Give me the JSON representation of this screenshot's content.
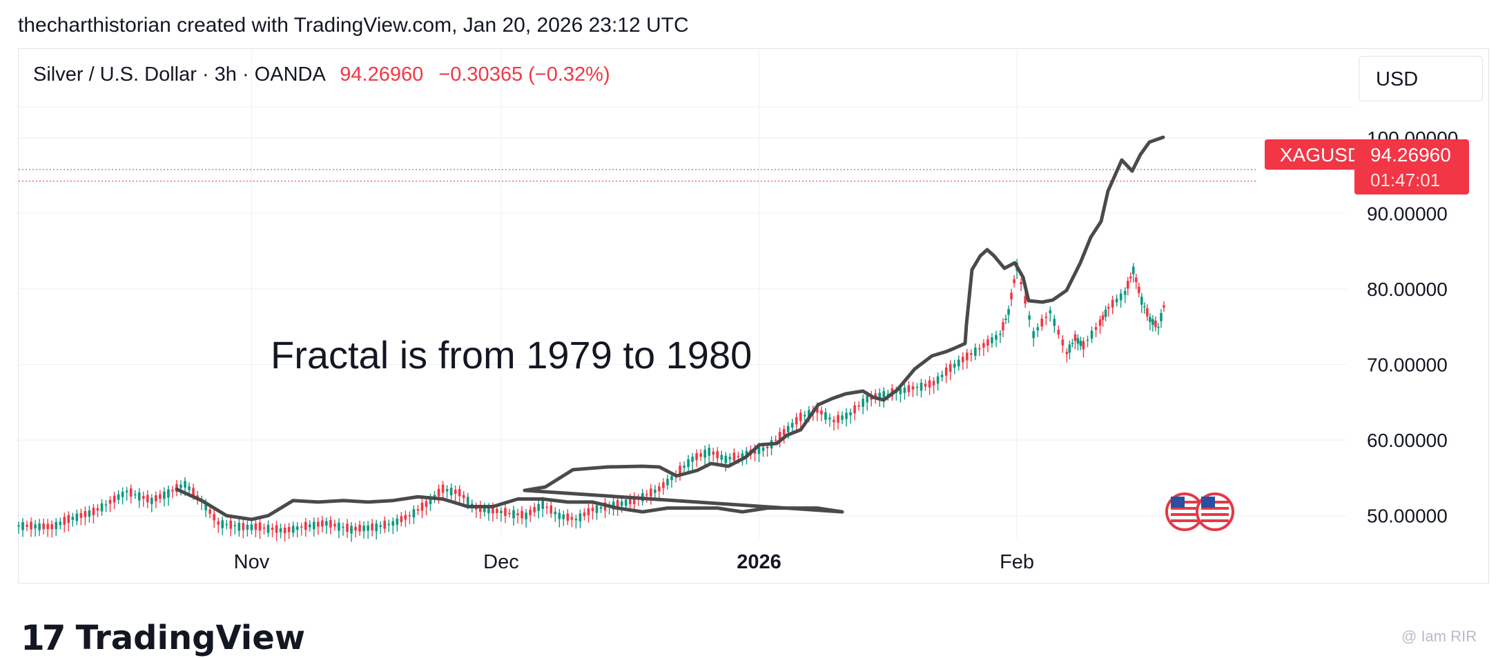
{
  "header": {
    "credit": "thecharthistorian created with TradingView.com, Jan 20, 2026 23:12 UTC"
  },
  "legend": {
    "symbol": "Silver / U.S. Dollar · 3h · OANDA",
    "price": "94.26960",
    "change": "−0.30365 (−0.32%)"
  },
  "currency_button": {
    "label": "USD"
  },
  "price_tag": {
    "ticker": "XAGUSD",
    "price": "94.26960",
    "countdown": "01:47:01"
  },
  "annotation": "Fractal is from 1979 to 1980",
  "branding": {
    "logo_text": "TradingView"
  },
  "watermark": "@ Iam RIR",
  "colors": {
    "up": "#089981",
    "down": "#f23645",
    "fractal_line": "#4a4a4a",
    "grid": "#f0f3fa",
    "price_tag": "#f23645"
  },
  "chart_data": {
    "type": "line",
    "title": "Silver / U.S. Dollar · 3h · OANDA",
    "ylim": [
      47.5,
      105
    ],
    "y_ticks": [
      50,
      60,
      70,
      80,
      90,
      100
    ],
    "y_tick_labels": [
      "50.00000",
      "60.00000",
      "70.00000",
      "80.00000",
      "90.00000",
      "100.00000"
    ],
    "x_ticks": [
      "Nov",
      "Dec",
      "2026",
      "Feb"
    ],
    "x_tick_dates": [
      "2025-11-01",
      "2025-12-01",
      "2026-01-01",
      "2026-02-01"
    ],
    "xlim": [
      "2025-10-04",
      "2026-02-19"
    ],
    "grid": true,
    "last_price": 94.2696,
    "high_line": 95.8,
    "series": [
      {
        "kind": "candles",
        "points": [
          [
            "2025-10-04",
            48.7
          ],
          [
            "2025-10-08",
            48.5
          ],
          [
            "2025-10-10",
            49.5
          ],
          [
            "2025-10-13",
            50.5
          ],
          [
            "2025-10-15",
            51.8
          ],
          [
            "2025-10-17",
            53.2
          ],
          [
            "2025-10-20",
            52.0
          ],
          [
            "2025-10-22",
            53.0
          ],
          [
            "2025-10-24",
            54.2
          ],
          [
            "2025-10-26",
            52.0
          ],
          [
            "2025-10-28",
            49.0
          ],
          [
            "2025-10-31",
            48.5
          ],
          [
            "2025-11-02",
            48.5
          ],
          [
            "2025-11-05",
            48.0
          ],
          [
            "2025-11-07",
            48.5
          ],
          [
            "2025-11-10",
            49.0
          ],
          [
            "2025-11-13",
            48.2
          ],
          [
            "2025-11-16",
            48.5
          ],
          [
            "2025-11-18",
            49.0
          ],
          [
            "2025-11-20",
            50.0
          ],
          [
            "2025-11-22",
            51.5
          ],
          [
            "2025-11-24",
            53.5
          ],
          [
            "2025-11-26",
            53.0
          ],
          [
            "2025-11-28",
            51.0
          ],
          [
            "2025-12-01",
            50.5
          ],
          [
            "2025-12-04",
            50.0
          ],
          [
            "2025-12-06",
            51.5
          ],
          [
            "2025-12-08",
            50.0
          ],
          [
            "2025-12-10",
            49.5
          ],
          [
            "2025-12-12",
            50.8
          ],
          [
            "2025-12-15",
            51.5
          ],
          [
            "2025-12-17",
            52.0
          ],
          [
            "2025-12-20",
            53.5
          ],
          [
            "2025-12-22",
            55.5
          ],
          [
            "2025-12-24",
            57.5
          ],
          [
            "2025-12-26",
            58.5
          ],
          [
            "2025-12-28",
            57.5
          ],
          [
            "2025-12-30",
            58.0
          ],
          [
            "2026-01-02",
            59.0
          ],
          [
            "2026-01-04",
            61.0
          ],
          [
            "2026-01-06",
            63.0
          ],
          [
            "2026-01-08",
            64.0
          ],
          [
            "2026-01-10",
            62.5
          ],
          [
            "2026-01-12",
            63.5
          ],
          [
            "2026-01-14",
            65.5
          ],
          [
            "2026-01-16",
            66.0
          ],
          [
            "2026-01-18",
            66.5
          ],
          [
            "2026-01-20",
            67.0
          ],
          [
            "2026-01-22",
            67.5
          ],
          [
            "2026-01-24",
            69.5
          ],
          [
            "2026-01-26",
            71.0
          ],
          [
            "2026-01-28",
            72.5
          ],
          [
            "2026-01-30",
            74.0
          ],
          [
            "2026-01-31",
            77.0
          ],
          [
            "2026-02-01",
            83.0
          ],
          [
            "2026-02-03",
            74.0
          ],
          [
            "2026-02-05",
            77.0
          ],
          [
            "2026-02-07",
            71.5
          ],
          [
            "2026-02-08",
            73.5
          ],
          [
            "2026-02-09",
            72.5
          ],
          [
            "2026-02-11",
            75.5
          ],
          [
            "2026-02-12",
            77.5
          ],
          [
            "2026-02-14",
            79.5
          ],
          [
            "2026-02-15",
            82.5
          ],
          [
            "2026-02-16",
            78.5
          ],
          [
            "2026-02-17",
            76.0
          ],
          [
            "2026-02-18",
            75.0
          ],
          [
            "2026-02-19",
            79.0
          ]
        ]
      },
      {
        "kind": "line",
        "points": [
          [
            "2025-10-23",
            53.5
          ],
          [
            "2025-10-26",
            52.0
          ],
          [
            "2025-10-29",
            50.0
          ],
          [
            "2025-11-01",
            49.5
          ],
          [
            "2025-11-03",
            50.0
          ],
          [
            "2025-11-06",
            52.0
          ],
          [
            "2025-11-09",
            51.8
          ],
          [
            "2025-11-12",
            52.0
          ],
          [
            "2025-11-15",
            51.8
          ],
          [
            "2025-11-18",
            52.0
          ],
          [
            "2025-11-21",
            52.5
          ],
          [
            "2025-11-24",
            52.2
          ],
          [
            "2025-11-27",
            51.2
          ],
          [
            "2025-11-30",
            51.2
          ],
          [
            "2025-12-03",
            52.2
          ],
          [
            "2025-12-06",
            52.2
          ],
          [
            "2025-12-09",
            51.8
          ],
          [
            "2025-12-12",
            51.8
          ],
          [
            "2025-12-15",
            51.0
          ],
          [
            "2025-12-18",
            50.5
          ],
          [
            "2025-12-21",
            51.0
          ],
          [
            "2025-12-24",
            51.0
          ],
          [
            "2025-12-27",
            51.0
          ],
          [
            "2025-12-30",
            50.5
          ],
          [
            "2026-01-02",
            51.0
          ],
          [
            "2026-01-05",
            51.0
          ],
          [
            "2026-01-08",
            51.0
          ],
          [
            "2026-01-11",
            50.5
          ]
        ]
      }
    ]
  }
}
